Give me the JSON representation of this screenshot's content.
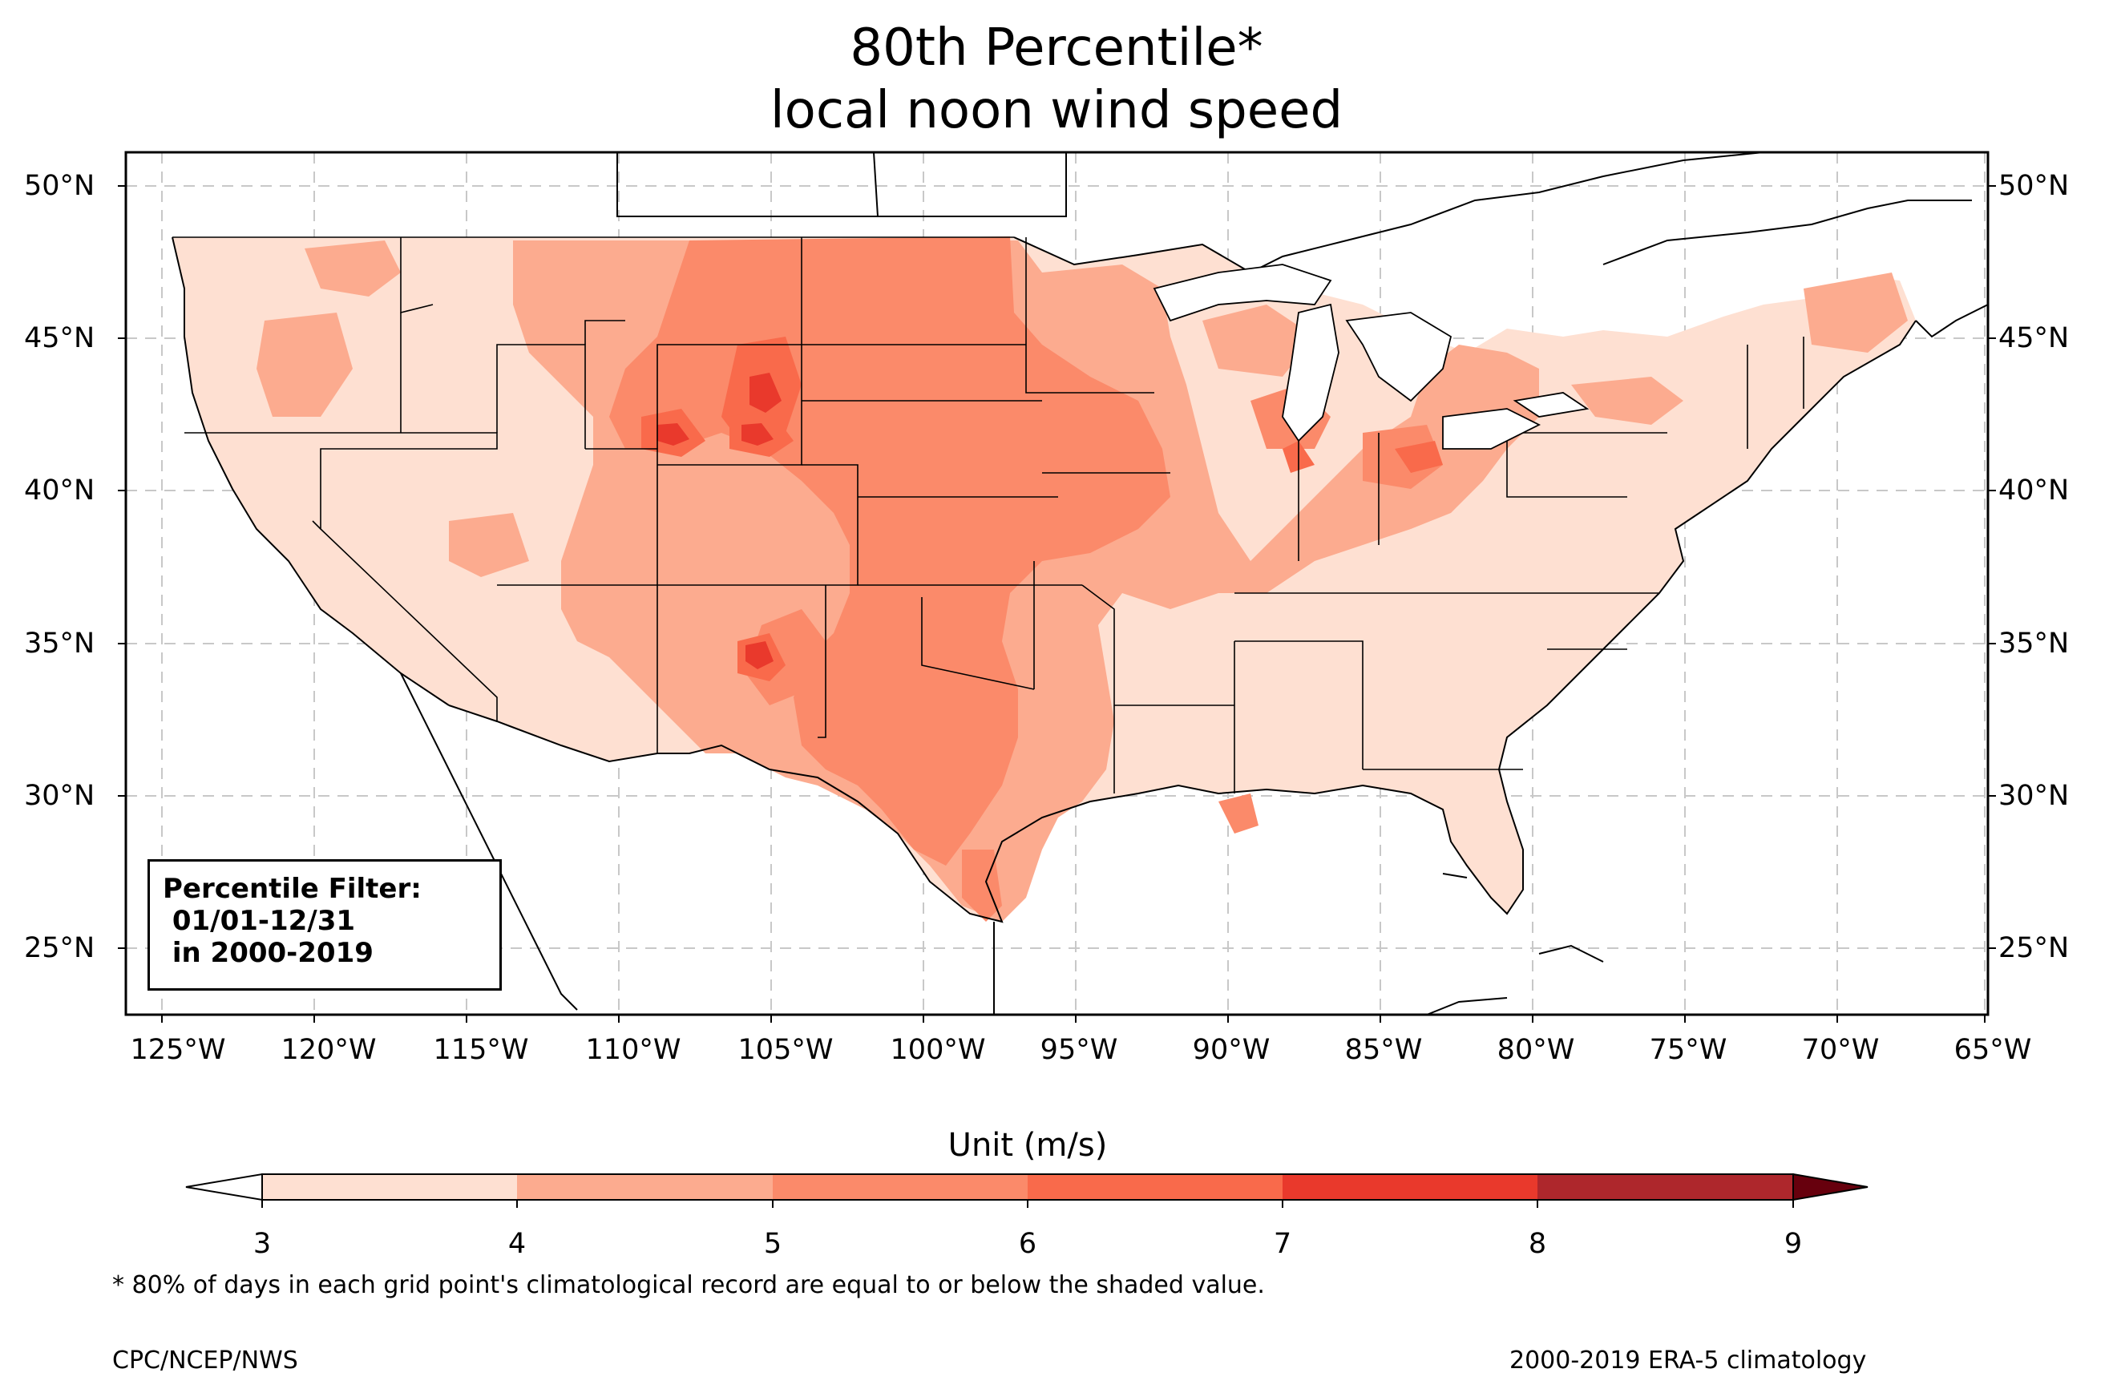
{
  "title": {
    "line1": "80th Percentile*",
    "line2": "local noon wind speed"
  },
  "map": {
    "lat_labels": [
      "50°N",
      "45°N",
      "40°N",
      "35°N",
      "30°N",
      "25°N"
    ],
    "lon_labels": [
      "125°W",
      "120°W",
      "115°W",
      "110°W",
      "105°W",
      "100°W",
      "95°W",
      "90°W",
      "85°W",
      "80°W",
      "75°W",
      "70°W",
      "65°W"
    ],
    "gridlines": "dashed",
    "shading_colors": [
      "#fee0d2",
      "#fcbba1",
      "#fc9272",
      "#fb6a4a",
      "#ef3b2c",
      "#cb181d"
    ]
  },
  "filter_box": {
    "line1": "Percentile Filter:",
    "line2": " 01/01-12/31",
    "line3": " in 2000-2019"
  },
  "colorbar": {
    "label": "Unit (m/s)",
    "ticks": [
      "3",
      "4",
      "5",
      "6",
      "7",
      "8",
      "9"
    ],
    "colors": [
      "#fee0d2",
      "#fcab8f",
      "#fb8a6a",
      "#f96a4b",
      "#e9392c",
      "#d21f22",
      "#a50f15"
    ],
    "under_color": "#ffffff",
    "over_color": "#67000d"
  },
  "footnote": "* 80% of days in each grid point's climatological record are equal to or below the shaded value.",
  "credit_left": "CPC/NCEP/NWS",
  "credit_right": "2000-2019 ERA-5 climatology"
}
